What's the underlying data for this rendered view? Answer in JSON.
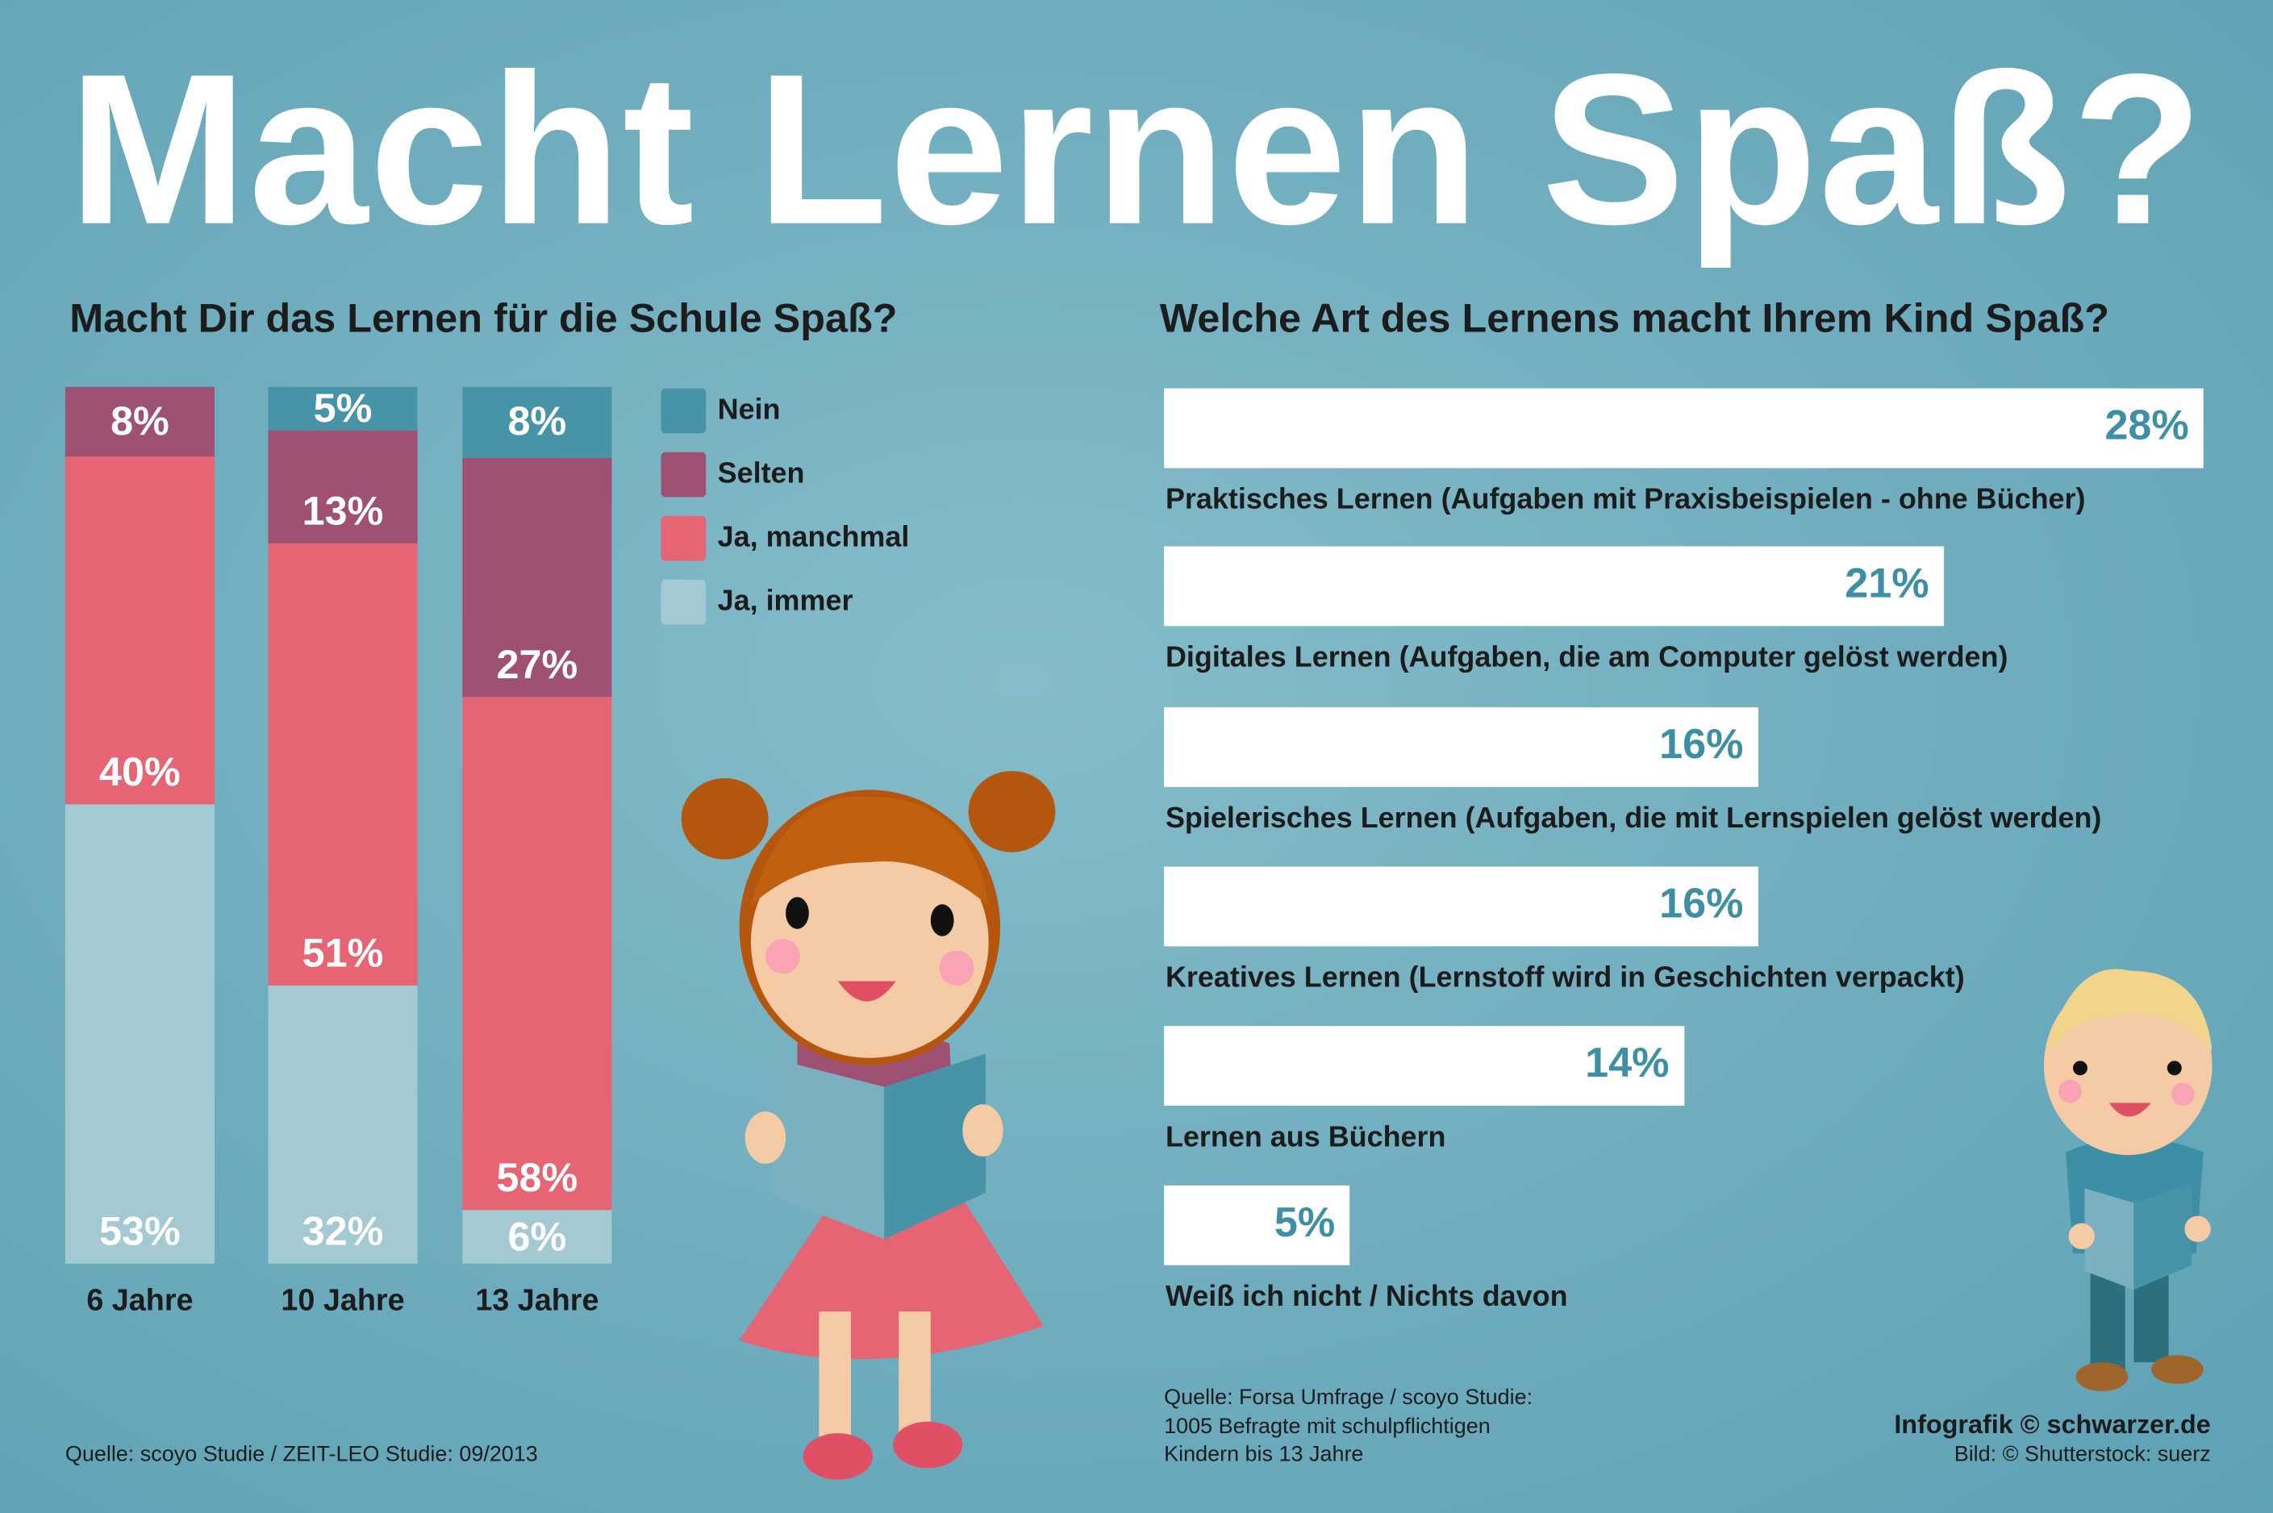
{
  "title": "Macht Lernen Spaß?",
  "colors": {
    "Nein": "#4794a8",
    "Selten": "#9e5173",
    "Ja, manchmal": "#e56575",
    "Ja, immer": "#a3c9d3",
    "bar_value": "#3d8fa5"
  },
  "chart_data": [
    {
      "type": "bar",
      "stacked": true,
      "title": "Macht Dir das Lernen für die Schule Spaß?",
      "categories": [
        "6 Jahre",
        "10 Jahre",
        "13 Jahre"
      ],
      "series": [
        {
          "name": "Nein",
          "values": [
            0,
            5,
            8
          ],
          "labels": [
            "",
            "5%",
            "8%"
          ]
        },
        {
          "name": "Selten",
          "values": [
            8,
            13,
            27
          ],
          "labels": [
            "8%",
            "13%",
            "27%"
          ]
        },
        {
          "name": "Ja, manchmal",
          "values": [
            40,
            51,
            58
          ],
          "labels": [
            "40%",
            "51%",
            "58%"
          ]
        },
        {
          "name": "Ja, immer",
          "values": [
            53,
            32,
            6
          ],
          "labels": [
            "53%",
            "32%",
            "6%"
          ]
        }
      ],
      "unit": "%",
      "legend": "right"
    },
    {
      "type": "bar",
      "orientation": "horizontal",
      "title": "Welche Art des Lernens macht Ihrem Kind Spaß?",
      "categories": [
        "Praktisches Lernen (Aufgaben mit Praxisbeispielen - ohne Bücher)",
        "Digitales Lernen (Aufgaben, die am Computer gelöst werden)",
        "Spielerisches Lernen (Aufgaben, die mit Lernspielen gelöst werden)",
        "Kreatives Lernen (Lernstoff wird in Geschichten verpackt)",
        "Lernen aus Büchern",
        "Weiß ich nicht / Nichts davon"
      ],
      "values": [
        28,
        21,
        16,
        16,
        14,
        5
      ],
      "labels": [
        "28%",
        "21%",
        "16%",
        "16%",
        "14%",
        "5%"
      ],
      "unit": "%"
    }
  ],
  "footer": {
    "left_source": "Quelle: scoyo Studie / ZEIT-LEO Studie: 09/2013",
    "right_source": [
      "Quelle: Forsa Umfrage / scoyo Studie:",
      "1005 Befragte mit schulpflichtigen",
      "Kindern bis 13 Jahre"
    ],
    "credit": "Infografik © schwarzer.de",
    "image_credit": "Bild: © Shutterstock: suerz"
  }
}
